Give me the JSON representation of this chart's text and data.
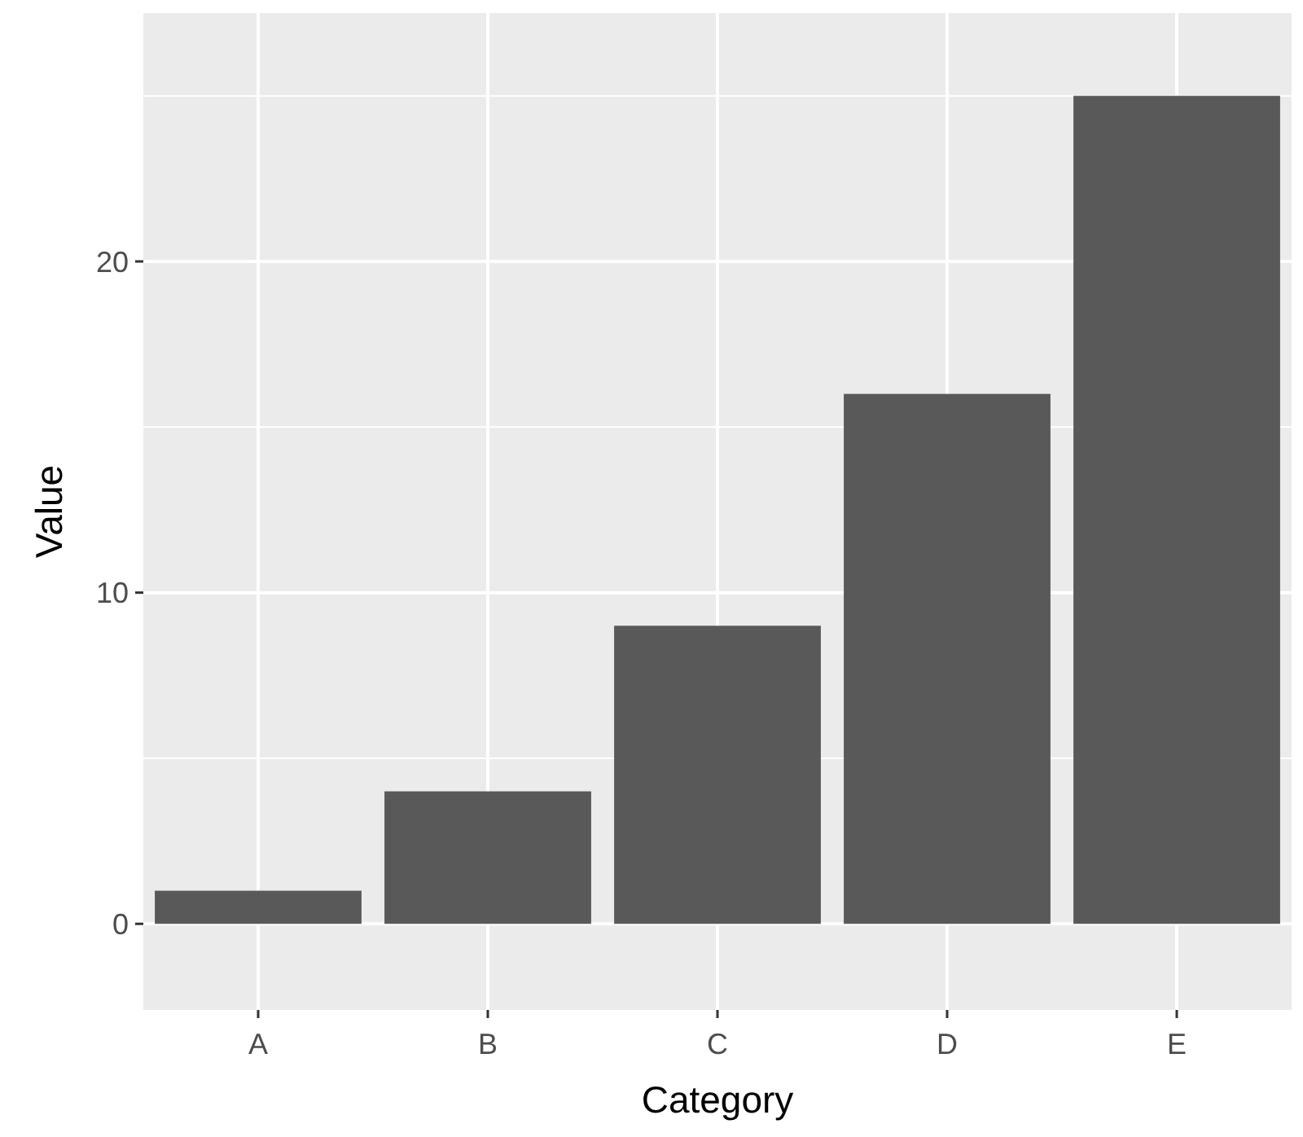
{
  "chart_data": {
    "type": "bar",
    "xlabel": "Category",
    "ylabel": "Value",
    "categories": [
      "A",
      "B",
      "C",
      "D",
      "E"
    ],
    "values": [
      1,
      4,
      9,
      16,
      25
    ],
    "color": "#595959",
    "ylim": [
      -2.6,
      27.5
    ],
    "yticks": [
      0,
      10,
      20
    ],
    "grid": true
  }
}
